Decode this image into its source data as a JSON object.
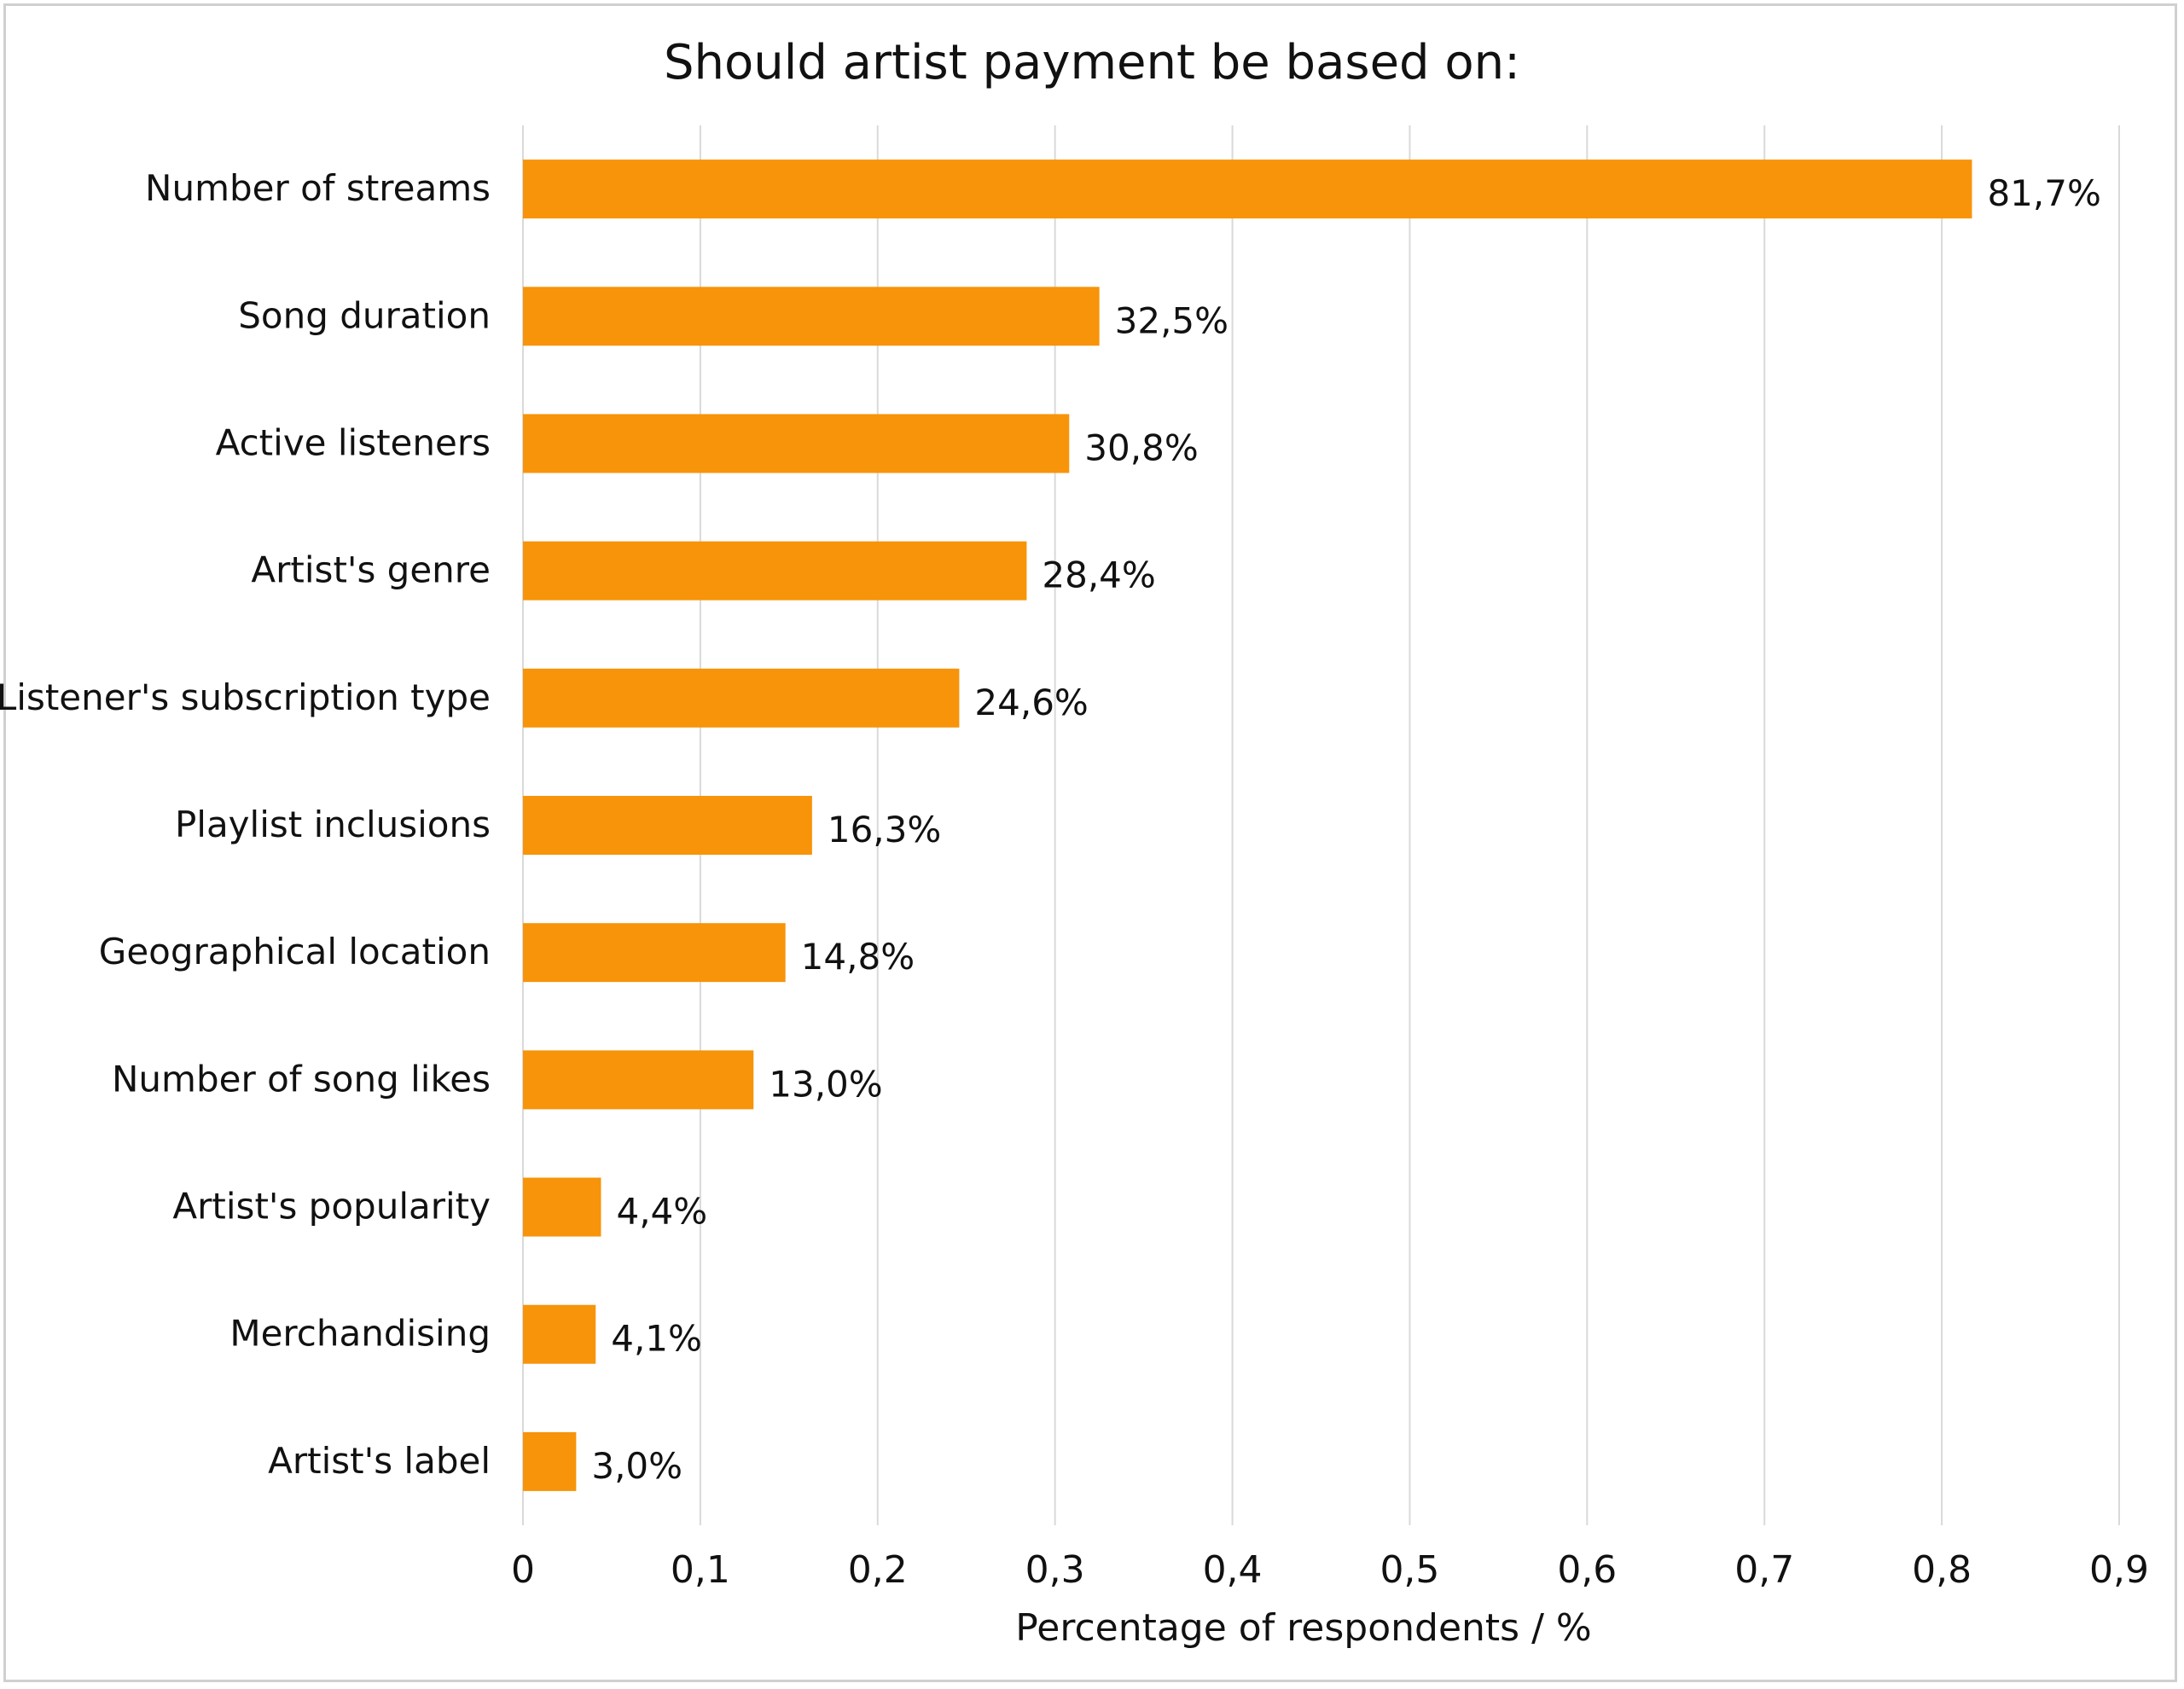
{
  "chart_data": {
    "type": "bar",
    "orientation": "horizontal",
    "title": "Should artist payment be based on:",
    "xlabel": "Percentage of respondents / %",
    "ylabel": "",
    "xlim": [
      0,
      0.9
    ],
    "x_ticks": [
      "0",
      "0,1",
      "0,2",
      "0,3",
      "0,4",
      "0,5",
      "0,6",
      "0,7",
      "0,8",
      "0,9"
    ],
    "grid": "vertical",
    "bar_color": "#F7940A",
    "categories": [
      "Number of streams",
      "Song duration",
      "Active listeners",
      "Artist's genre",
      "Listener's subscription type",
      "Playlist inclusions",
      "Geographical location",
      "Number of song  likes",
      "Artist's popularity",
      "Merchandising",
      "Artist's label"
    ],
    "values": [
      0.817,
      0.325,
      0.308,
      0.284,
      0.246,
      0.163,
      0.148,
      0.13,
      0.044,
      0.041,
      0.03
    ],
    "data_labels": [
      "81,7%",
      "32,5%",
      "30,8%",
      "28,4%",
      "24,6%",
      "16,3%",
      "14,8%",
      "13,0%",
      "4,4%",
      "4,1%",
      "3,0%"
    ]
  }
}
